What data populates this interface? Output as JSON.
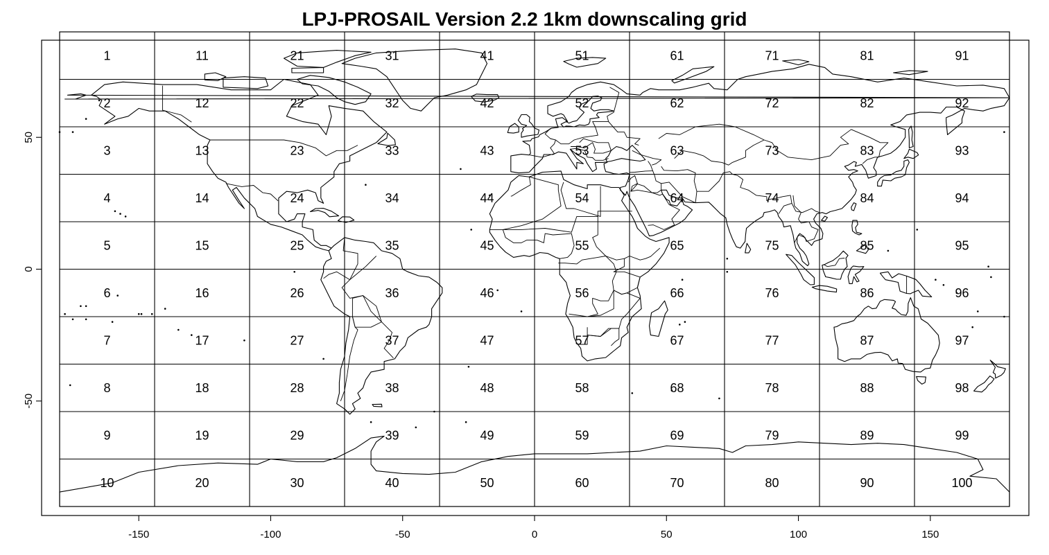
{
  "title": "LPJ-PROSAIL Version 2.2 1km downscaling grid",
  "x_axis": {
    "ticks": [
      -150,
      -100,
      -50,
      0,
      50,
      100,
      150
    ],
    "range": [
      -180,
      180
    ]
  },
  "y_axis": {
    "ticks": [
      50,
      0,
      -50
    ],
    "range": [
      -90,
      90
    ]
  },
  "grid": {
    "columns": 10,
    "rows": 10,
    "lon_edges": [
      -180,
      -144,
      -108,
      -72,
      -36,
      0,
      36,
      72,
      108,
      144,
      180
    ],
    "lat_edges": [
      90,
      72,
      54,
      36,
      18,
      0,
      -18,
      -36,
      -54,
      -72,
      -90
    ],
    "numbering": "column-major, 1 at top-left, 10 at bottom-left, 100 at bottom-right"
  },
  "colors": {
    "lines": "#000000",
    "background": "#ffffff"
  }
}
